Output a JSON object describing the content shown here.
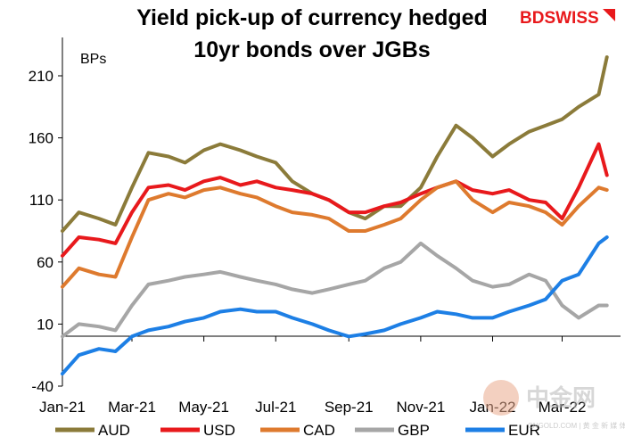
{
  "chart_data": {
    "type": "line",
    "title_lines": [
      "Yield pick-up of currency hedged",
      "10yr bonds over JGBs"
    ],
    "unit_label": "BPs",
    "ylim": [
      -40,
      240
    ],
    "y_ticks": [
      210,
      160,
      110,
      60,
      10,
      -40
    ],
    "y_tick_labels": [
      "210",
      "160",
      "110",
      "60",
      "10",
      "-40"
    ],
    "x_tick_labels": [
      "Jan-21",
      "Mar-21",
      "May-21",
      "Jul-21",
      "Sep-21",
      "Nov-21",
      "Jan-22",
      "Mar-22"
    ],
    "x_tick_dates": [
      "2021-01-01",
      "2021-03-01",
      "2021-05-01",
      "2021-07-01",
      "2021-09-01",
      "2021-11-01",
      "2022-01-01",
      "2022-03-01"
    ],
    "x_range": [
      "2021-01-01",
      "2022-04-15"
    ],
    "grid": false,
    "legend_position": "bottom",
    "series": [
      {
        "name": "AUD",
        "color": "#8b7b3a",
        "x": [
          "2021-01-01",
          "2021-01-15",
          "2021-02-01",
          "2021-02-15",
          "2021-03-01",
          "2021-03-15",
          "2021-04-01",
          "2021-04-15",
          "2021-05-01",
          "2021-05-15",
          "2021-06-01",
          "2021-06-15",
          "2021-07-01",
          "2021-07-15",
          "2021-08-01",
          "2021-08-15",
          "2021-09-01",
          "2021-09-15",
          "2021-10-01",
          "2021-10-15",
          "2021-11-01",
          "2021-11-15",
          "2021-12-01",
          "2021-12-15",
          "2022-01-01",
          "2022-01-15",
          "2022-02-01",
          "2022-02-15",
          "2022-03-01",
          "2022-03-15",
          "2022-04-01",
          "2022-04-08"
        ],
        "values": [
          85,
          100,
          95,
          90,
          120,
          148,
          145,
          140,
          150,
          155,
          150,
          145,
          140,
          125,
          115,
          110,
          100,
          95,
          105,
          105,
          120,
          145,
          170,
          160,
          145,
          155,
          165,
          170,
          175,
          185,
          195,
          225
        ]
      },
      {
        "name": "USD",
        "color": "#e8191c",
        "x": [
          "2021-01-01",
          "2021-01-15",
          "2021-02-01",
          "2021-02-15",
          "2021-03-01",
          "2021-03-15",
          "2021-04-01",
          "2021-04-15",
          "2021-05-01",
          "2021-05-15",
          "2021-06-01",
          "2021-06-15",
          "2021-07-01",
          "2021-07-15",
          "2021-08-01",
          "2021-08-15",
          "2021-09-01",
          "2021-09-15",
          "2021-10-01",
          "2021-10-15",
          "2021-11-01",
          "2021-11-15",
          "2021-12-01",
          "2021-12-15",
          "2022-01-01",
          "2022-01-15",
          "2022-02-01",
          "2022-02-15",
          "2022-03-01",
          "2022-03-15",
          "2022-04-01",
          "2022-04-08"
        ],
        "values": [
          65,
          80,
          78,
          75,
          100,
          120,
          122,
          118,
          125,
          128,
          122,
          125,
          120,
          118,
          115,
          110,
          100,
          100,
          105,
          108,
          115,
          120,
          125,
          118,
          115,
          118,
          110,
          108,
          95,
          120,
          155,
          130
        ]
      },
      {
        "name": "CAD",
        "color": "#de7a2e",
        "x": [
          "2021-01-01",
          "2021-01-15",
          "2021-02-01",
          "2021-02-15",
          "2021-03-01",
          "2021-03-15",
          "2021-04-01",
          "2021-04-15",
          "2021-05-01",
          "2021-05-15",
          "2021-06-01",
          "2021-06-15",
          "2021-07-01",
          "2021-07-15",
          "2021-08-01",
          "2021-08-15",
          "2021-09-01",
          "2021-09-15",
          "2021-10-01",
          "2021-10-15",
          "2021-11-01",
          "2021-11-15",
          "2021-12-01",
          "2021-12-15",
          "2022-01-01",
          "2022-01-15",
          "2022-02-01",
          "2022-02-15",
          "2022-03-01",
          "2022-03-15",
          "2022-04-01",
          "2022-04-08"
        ],
        "values": [
          40,
          55,
          50,
          48,
          80,
          110,
          115,
          112,
          118,
          120,
          115,
          112,
          105,
          100,
          98,
          95,
          85,
          85,
          90,
          95,
          110,
          120,
          125,
          110,
          100,
          108,
          105,
          100,
          90,
          105,
          120,
          118
        ]
      },
      {
        "name": "GBP",
        "color": "#a6a6a6",
        "x": [
          "2021-01-01",
          "2021-01-15",
          "2021-02-01",
          "2021-02-15",
          "2021-03-01",
          "2021-03-15",
          "2021-04-01",
          "2021-04-15",
          "2021-05-01",
          "2021-05-15",
          "2021-06-01",
          "2021-06-15",
          "2021-07-01",
          "2021-07-15",
          "2021-08-01",
          "2021-08-15",
          "2021-09-01",
          "2021-09-15",
          "2021-10-01",
          "2021-10-15",
          "2021-11-01",
          "2021-11-15",
          "2021-12-01",
          "2021-12-15",
          "2022-01-01",
          "2022-01-15",
          "2022-02-01",
          "2022-02-15",
          "2022-03-01",
          "2022-03-15",
          "2022-04-01",
          "2022-04-08"
        ],
        "values": [
          0,
          10,
          8,
          5,
          25,
          42,
          45,
          48,
          50,
          52,
          48,
          45,
          42,
          38,
          35,
          38,
          42,
          45,
          55,
          60,
          75,
          65,
          55,
          45,
          40,
          42,
          50,
          45,
          25,
          15,
          25,
          25
        ]
      },
      {
        "name": "EUR",
        "color": "#1d7fe5",
        "x": [
          "2021-01-01",
          "2021-01-15",
          "2021-02-01",
          "2021-02-15",
          "2021-03-01",
          "2021-03-15",
          "2021-04-01",
          "2021-04-15",
          "2021-05-01",
          "2021-05-15",
          "2021-06-01",
          "2021-06-15",
          "2021-07-01",
          "2021-07-15",
          "2021-08-01",
          "2021-08-15",
          "2021-09-01",
          "2021-09-15",
          "2021-10-01",
          "2021-10-15",
          "2021-11-01",
          "2021-11-15",
          "2021-12-01",
          "2021-12-15",
          "2022-01-01",
          "2022-01-15",
          "2022-02-01",
          "2022-02-15",
          "2022-03-01",
          "2022-03-15",
          "2022-04-01",
          "2022-04-08"
        ],
        "values": [
          -30,
          -15,
          -10,
          -12,
          0,
          5,
          8,
          12,
          15,
          20,
          22,
          20,
          20,
          15,
          10,
          5,
          0,
          2,
          5,
          10,
          15,
          20,
          18,
          15,
          15,
          20,
          25,
          30,
          45,
          50,
          75,
          80
        ]
      }
    ]
  },
  "branding": {
    "logo_text": "BDSWISS",
    "watermark_text": "中金网",
    "watermark_sub": "CNGOLD.COM | 黄 金 新 媒 体"
  }
}
